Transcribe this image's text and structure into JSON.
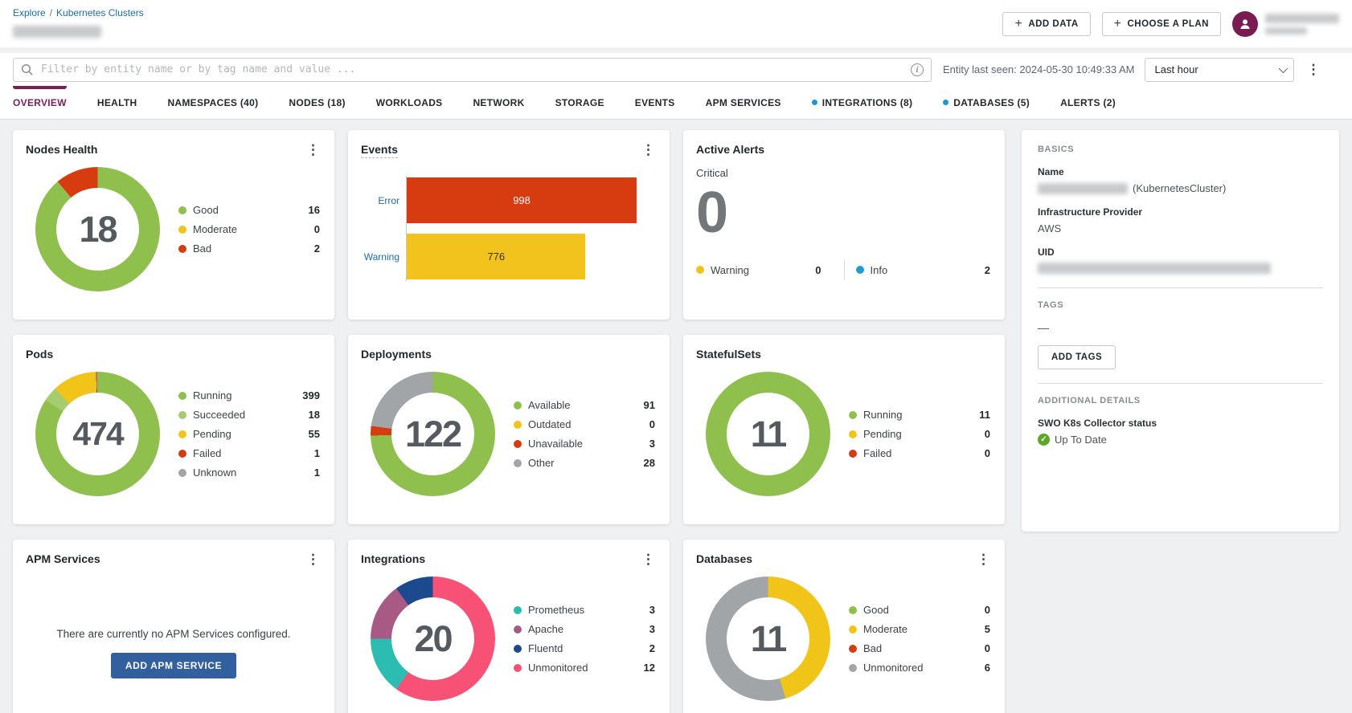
{
  "colors": {
    "accent": "#7b1e58",
    "tab_dot": "#189bd4",
    "avatar_bg": "#7a1b52",
    "primary_button": "#32609f",
    "link": "#1b6ca8"
  },
  "header": {
    "breadcrumb": {
      "explore": "Explore",
      "separator": "/",
      "section": "Kubernetes Clusters"
    },
    "add_data_label": "ADD DATA",
    "choose_plan_label": "CHOOSE A PLAN",
    "plus": "+"
  },
  "toolbar": {
    "search_placeholder": "Filter by entity name or by tag name and value ...",
    "entity_last_seen": "Entity last seen: 2024-05-30 10:49:33 AM",
    "time_range": "Last hour"
  },
  "tabs": [
    {
      "label": "OVERVIEW",
      "active": true
    },
    {
      "label": "HEALTH"
    },
    {
      "label": "NAMESPACES (40)"
    },
    {
      "label": "NODES (18)"
    },
    {
      "label": "WORKLOADS"
    },
    {
      "label": "NETWORK"
    },
    {
      "label": "STORAGE"
    },
    {
      "label": "EVENTS"
    },
    {
      "label": "APM SERVICES"
    },
    {
      "label": "INTEGRATIONS (8)",
      "dot": true
    },
    {
      "label": "DATABASES (5)",
      "dot": true
    },
    {
      "label": "ALERTS (2)"
    }
  ],
  "cards": {
    "nodes_health": {
      "title": "Nodes Health",
      "total": "18",
      "legend": [
        {
          "label": "Good",
          "value": 16,
          "color": "#8fbf4d"
        },
        {
          "label": "Moderate",
          "value": 0,
          "color": "#f0c419"
        },
        {
          "label": "Bad",
          "value": 2,
          "color": "#d63c10"
        }
      ]
    },
    "events": {
      "title": "Events",
      "bars": [
        {
          "label": "Error",
          "value": 998,
          "color": "#d63c10",
          "text": "#ffffff"
        },
        {
          "label": "Warning",
          "value": 776,
          "color": "#f2c21d",
          "text": "#333333"
        }
      ]
    },
    "active_alerts": {
      "title": "Active Alerts",
      "critical_label": "Critical",
      "critical_value": "0",
      "legend": [
        {
          "label": "Warning",
          "value": 0,
          "color": "#f0c419"
        },
        {
          "label": "Info",
          "value": 2,
          "color": "#1b9ed6"
        }
      ]
    },
    "pods": {
      "title": "Pods",
      "total": "474",
      "legend": [
        {
          "label": "Running",
          "value": 399,
          "color": "#8fbf4d"
        },
        {
          "label": "Succeeded",
          "value": 18,
          "color": "#a6cc70"
        },
        {
          "label": "Pending",
          "value": 55,
          "color": "#f0c419"
        },
        {
          "label": "Failed",
          "value": 1,
          "color": "#d63c10"
        },
        {
          "label": "Unknown",
          "value": 1,
          "color": "#a2a5a8"
        }
      ]
    },
    "deployments": {
      "title": "Deployments",
      "total": "122",
      "legend": [
        {
          "label": "Available",
          "value": 91,
          "color": "#8fbf4d"
        },
        {
          "label": "Outdated",
          "value": 0,
          "color": "#f0c419"
        },
        {
          "label": "Unavailable",
          "value": 3,
          "color": "#d63c10"
        },
        {
          "label": "Other",
          "value": 28,
          "color": "#a2a5a8"
        }
      ]
    },
    "statefulsets": {
      "title": "StatefulSets",
      "total": "11",
      "legend": [
        {
          "label": "Running",
          "value": 11,
          "color": "#8fbf4d"
        },
        {
          "label": "Pending",
          "value": 0,
          "color": "#f0c419"
        },
        {
          "label": "Failed",
          "value": 0,
          "color": "#d63c10"
        }
      ]
    },
    "apm_services": {
      "title": "APM Services",
      "empty_message": "There are currently no APM Services configured.",
      "button_label": "ADD APM SERVICE"
    },
    "integrations": {
      "title": "Integrations",
      "total": "20",
      "legend": [
        {
          "label": "Prometheus",
          "value": 3,
          "color": "#2cbcb1"
        },
        {
          "label": "Apache",
          "value": 3,
          "color": "#a85a85"
        },
        {
          "label": "Fluentd",
          "value": 2,
          "color": "#1b4a8f"
        },
        {
          "label": "Unmonitored",
          "value": 12,
          "color": "#f75276"
        }
      ],
      "segments": [
        {
          "value": 12,
          "color": "#f75276"
        },
        {
          "value": 3,
          "color": "#2cbcb1"
        },
        {
          "value": 3,
          "color": "#a85a85"
        },
        {
          "value": 2,
          "color": "#1b4a8f"
        }
      ]
    },
    "databases": {
      "title": "Databases",
      "total": "11",
      "legend": [
        {
          "label": "Good",
          "value": 0,
          "color": "#8fbf4d"
        },
        {
          "label": "Moderate",
          "value": 5,
          "color": "#f0c419"
        },
        {
          "label": "Bad",
          "value": 0,
          "color": "#d63c10"
        },
        {
          "label": "Unmonitored",
          "value": 6,
          "color": "#a2a5a8"
        }
      ]
    }
  },
  "side_panel": {
    "basics_title": "BASICS",
    "name_label": "Name",
    "name_suffix": "(KubernetesCluster)",
    "provider_label": "Infrastructure Provider",
    "provider_value": "AWS",
    "uid_label": "UID",
    "tags_title": "TAGS",
    "tags_empty": "—",
    "add_tags_label": "ADD TAGS",
    "additional_title": "ADDITIONAL DETAILS",
    "collector_label": "SWO K8s Collector status",
    "collector_status": "Up To Date",
    "check_icon": "✓"
  }
}
